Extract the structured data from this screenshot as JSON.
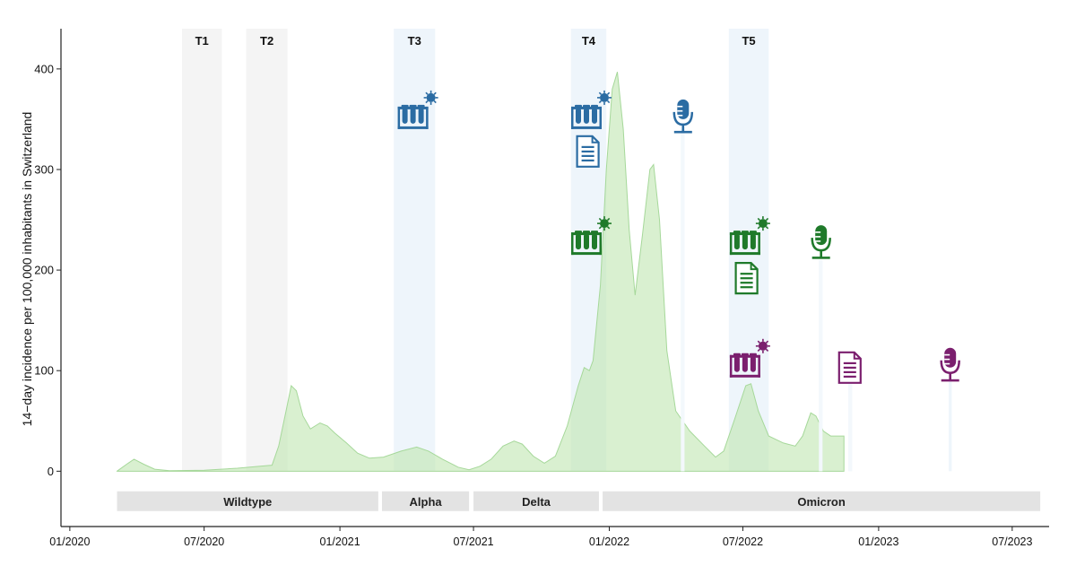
{
  "chart_data": {
    "type": "area",
    "ylabel": "14−day incidence per 100,000 inhabitants in Switzerland",
    "xlabel": "",
    "ylim": [
      -55,
      440
    ],
    "xlim": [
      "2019-12-20",
      "2023-08-20"
    ],
    "yticks": [
      0,
      100,
      200,
      300,
      400
    ],
    "xticks": [
      {
        "date": "2020-01-01",
        "label": "01/2020"
      },
      {
        "date": "2020-07-01",
        "label": "07/2020"
      },
      {
        "date": "2021-01-01",
        "label": "01/2021"
      },
      {
        "date": "2021-07-01",
        "label": "07/2021"
      },
      {
        "date": "2022-01-01",
        "label": "01/2022"
      },
      {
        "date": "2022-07-01",
        "label": "07/2022"
      },
      {
        "date": "2023-01-01",
        "label": "01/2023"
      },
      {
        "date": "2023-07-01",
        "label": "07/2023"
      }
    ],
    "series": [
      {
        "name": "14-day incidence",
        "color": "#bfe6b0",
        "points": [
          [
            "2020-03-05",
            0
          ],
          [
            "2020-03-20",
            8
          ],
          [
            "2020-03-28",
            12
          ],
          [
            "2020-04-10",
            7
          ],
          [
            "2020-04-25",
            2
          ],
          [
            "2020-05-15",
            0.5
          ],
          [
            "2020-07-01",
            1
          ],
          [
            "2020-08-15",
            3
          ],
          [
            "2020-09-15",
            5
          ],
          [
            "2020-10-01",
            6
          ],
          [
            "2020-10-10",
            25
          ],
          [
            "2020-10-20",
            60
          ],
          [
            "2020-10-27",
            85
          ],
          [
            "2020-11-03",
            80
          ],
          [
            "2020-11-12",
            55
          ],
          [
            "2020-11-22",
            42
          ],
          [
            "2020-12-05",
            48
          ],
          [
            "2020-12-15",
            45
          ],
          [
            "2020-12-25",
            38
          ],
          [
            "2021-01-10",
            28
          ],
          [
            "2021-01-25",
            18
          ],
          [
            "2021-02-10",
            13
          ],
          [
            "2021-03-01",
            14
          ],
          [
            "2021-03-25",
            20
          ],
          [
            "2021-04-15",
            24
          ],
          [
            "2021-05-01",
            20
          ],
          [
            "2021-05-20",
            12
          ],
          [
            "2021-06-10",
            4
          ],
          [
            "2021-06-25",
            1.5
          ],
          [
            "2021-07-10",
            5
          ],
          [
            "2021-07-25",
            12
          ],
          [
            "2021-08-10",
            25
          ],
          [
            "2021-08-25",
            30
          ],
          [
            "2021-09-05",
            27
          ],
          [
            "2021-09-20",
            15
          ],
          [
            "2021-10-05",
            8
          ],
          [
            "2021-10-20",
            15
          ],
          [
            "2021-11-05",
            45
          ],
          [
            "2021-11-20",
            85
          ],
          [
            "2021-11-28",
            103
          ],
          [
            "2021-12-05",
            100
          ],
          [
            "2021-12-10",
            110
          ],
          [
            "2021-12-20",
            185
          ],
          [
            "2021-12-28",
            300
          ],
          [
            "2022-01-05",
            380
          ],
          [
            "2022-01-12",
            397
          ],
          [
            "2022-01-20",
            340
          ],
          [
            "2022-01-28",
            240
          ],
          [
            "2022-02-05",
            175
          ],
          [
            "2022-02-15",
            235
          ],
          [
            "2022-02-25",
            300
          ],
          [
            "2022-03-02",
            305
          ],
          [
            "2022-03-10",
            250
          ],
          [
            "2022-03-20",
            120
          ],
          [
            "2022-04-01",
            60
          ],
          [
            "2022-04-20",
            40
          ],
          [
            "2022-05-10",
            25
          ],
          [
            "2022-05-25",
            14
          ],
          [
            "2022-06-05",
            20
          ],
          [
            "2022-06-20",
            52
          ],
          [
            "2022-07-05",
            85
          ],
          [
            "2022-07-12",
            87
          ],
          [
            "2022-07-22",
            60
          ],
          [
            "2022-08-05",
            35
          ],
          [
            "2022-08-25",
            28
          ],
          [
            "2022-09-10",
            25
          ],
          [
            "2022-09-20",
            35
          ],
          [
            "2022-10-01",
            58
          ],
          [
            "2022-10-08",
            55
          ],
          [
            "2022-10-18",
            40
          ],
          [
            "2022-10-28",
            35
          ],
          [
            "2022-11-15",
            35
          ]
        ]
      }
    ],
    "time_windows": [
      {
        "label": "T1",
        "start": "2020-06-01",
        "end": "2020-07-25",
        "color": "#f4f4f4"
      },
      {
        "label": "T2",
        "start": "2020-08-27",
        "end": "2020-10-22",
        "color": "#f4f4f4"
      },
      {
        "label": "T3",
        "start": "2021-03-15",
        "end": "2021-05-10",
        "color": "#eef5fb"
      },
      {
        "label": "T4",
        "start": "2021-11-10",
        "end": "2021-12-28",
        "color": "#eef5fb"
      },
      {
        "label": "T5",
        "start": "2022-06-12",
        "end": "2022-08-05",
        "color": "#eef5fb"
      }
    ],
    "data_gaps": [
      {
        "start": "2022-04-08",
        "end": "2022-04-13",
        "top": 340
      },
      {
        "start": "2022-10-12",
        "end": "2022-10-17",
        "top": 210
      },
      {
        "start": "2022-11-21",
        "end": "2022-11-26",
        "top": 100
      },
      {
        "start": "2023-04-06",
        "end": "2023-04-10",
        "top": 90
      }
    ],
    "variant_bands": [
      {
        "label": "Wildtype",
        "start": "2020-03-05",
        "end": "2021-02-22"
      },
      {
        "label": "Alpha",
        "start": "2021-02-27",
        "end": "2021-06-25"
      },
      {
        "label": "Delta",
        "start": "2021-07-01",
        "end": "2021-12-18"
      },
      {
        "label": "Omicron",
        "start": "2021-12-23",
        "end": "2023-08-08"
      }
    ],
    "markers": [
      {
        "name": "blue-tubes-T3",
        "kind": "tubes",
        "color": "#2b6ca3",
        "date": "2021-04-10",
        "value": 350
      },
      {
        "name": "blue-tubes-T4",
        "kind": "tubes",
        "color": "#2b6ca3",
        "date": "2021-12-01",
        "value": 350
      },
      {
        "name": "blue-document-T4",
        "kind": "document",
        "color": "#2b6ca3",
        "date": "2021-12-03",
        "value": 318
      },
      {
        "name": "blue-microphone",
        "kind": "microphone",
        "color": "#2b6ca3",
        "date": "2022-04-11",
        "value": 350
      },
      {
        "name": "green-tubes-T4",
        "kind": "tubes",
        "color": "#1f7a2a",
        "date": "2021-12-01",
        "value": 225
      },
      {
        "name": "green-tubes-T5",
        "kind": "tubes",
        "color": "#1f7a2a",
        "date": "2022-07-04",
        "value": 225
      },
      {
        "name": "green-document-T5",
        "kind": "document",
        "color": "#1f7a2a",
        "date": "2022-07-06",
        "value": 192
      },
      {
        "name": "green-microphone",
        "kind": "microphone",
        "color": "#1f7a2a",
        "date": "2022-10-15",
        "value": 225
      },
      {
        "name": "purple-tubes-T5",
        "kind": "tubes",
        "color": "#7b1f6e",
        "date": "2022-07-04",
        "value": 103
      },
      {
        "name": "purple-document",
        "kind": "document",
        "color": "#7b1f6e",
        "date": "2022-11-23",
        "value": 103
      },
      {
        "name": "purple-microphone",
        "kind": "microphone",
        "color": "#7b1f6e",
        "date": "2023-04-08",
        "value": 103
      }
    ]
  }
}
